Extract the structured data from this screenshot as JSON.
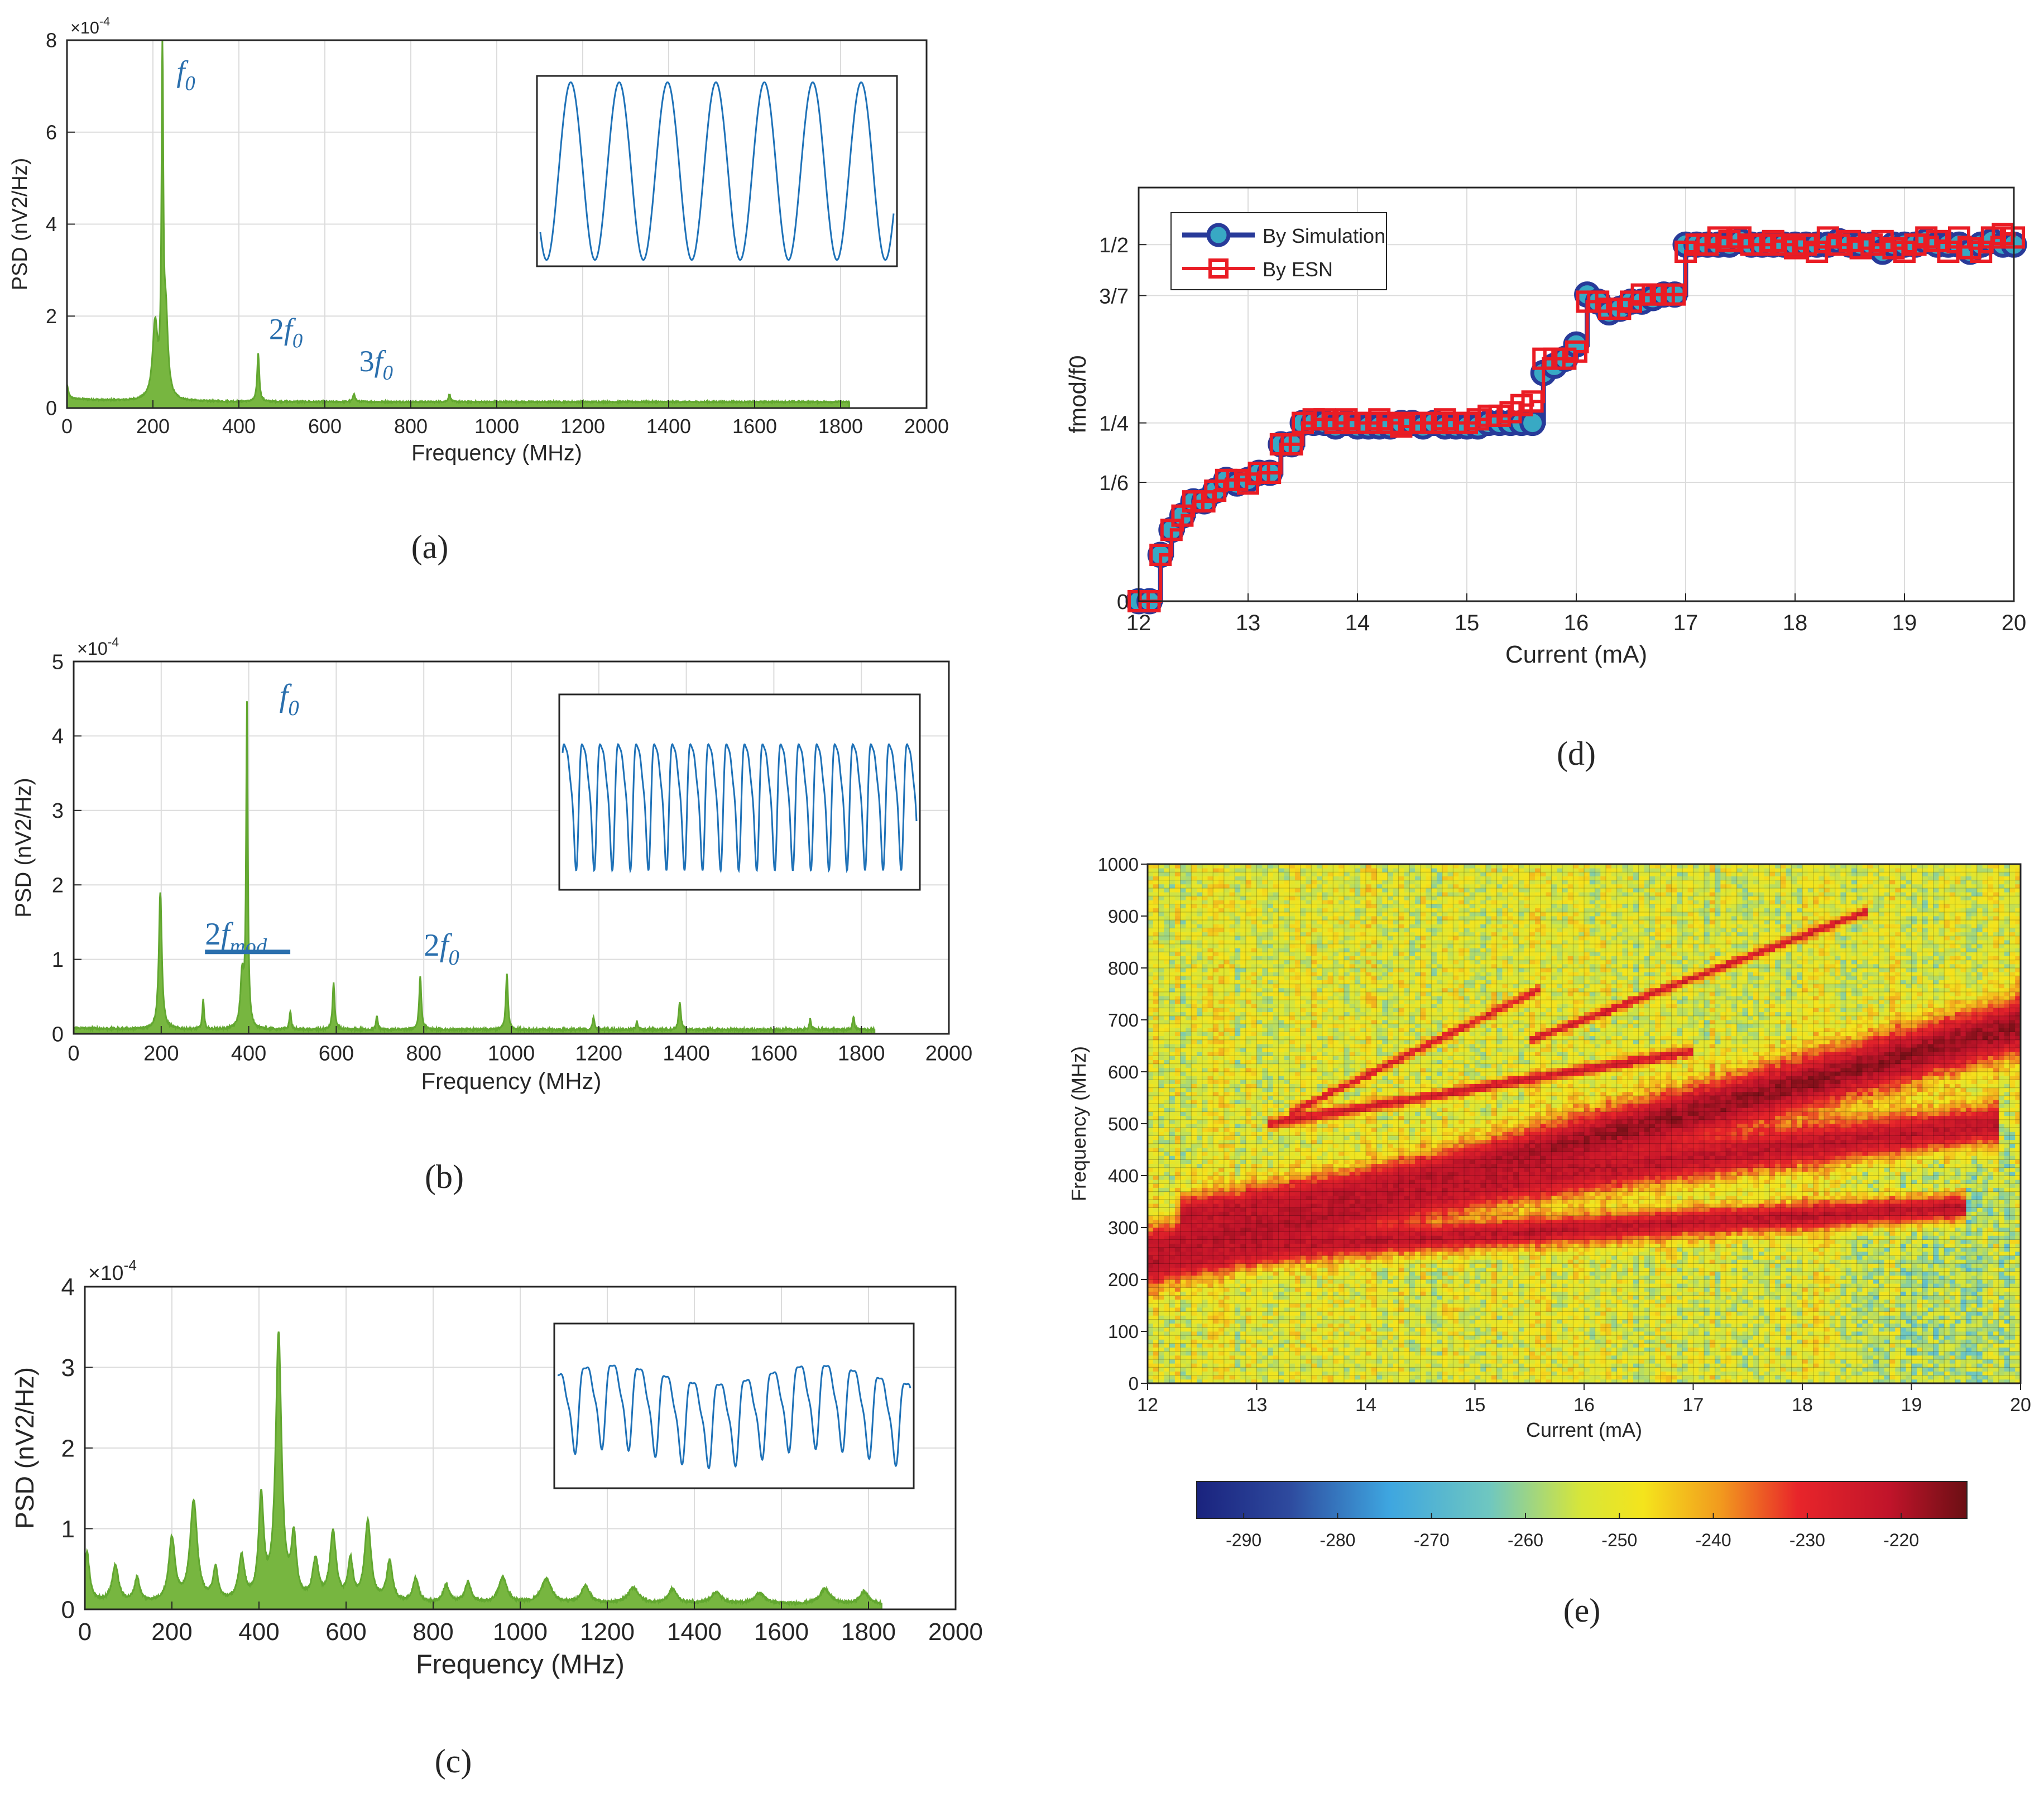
{
  "colors": {
    "psd_fill": "#77b640",
    "psd_edge": "#62a730",
    "inset_line": "#1f72b8",
    "annotation": "#2a6fad",
    "simulation_line": "#283a99",
    "simulation_marker_fill": "#38a9c4",
    "esn_line": "#ea1c24",
    "grid": "#dcdcdc",
    "axis": "#262626"
  },
  "chart_data": [
    {
      "panel": "a",
      "type": "area",
      "caption": "(a)",
      "xlabel": "Frequency (MHz)",
      "ylabel": "PSD (nV2/Hz)",
      "exponent_label": "×10",
      "exponent": "-4",
      "xlim": [
        0,
        2000
      ],
      "ylim": [
        0,
        8
      ],
      "xticks": [
        "0",
        "200",
        "400",
        "600",
        "800",
        "1000",
        "1200",
        "1400",
        "1600",
        "1800",
        "2000"
      ],
      "yticks": [
        "0",
        "2",
        "4",
        "6",
        "8"
      ],
      "x_end": 1820,
      "baseline": 0.12,
      "peaks": [
        [
          0,
          0.3,
          6
        ],
        [
          205,
          1.6,
          12
        ],
        [
          222,
          7.45,
          4
        ],
        [
          230,
          1.7,
          10
        ],
        [
          445,
          1.05,
          5
        ],
        [
          668,
          0.18,
          5
        ],
        [
          890,
          0.16,
          5
        ]
      ],
      "annotations": [
        {
          "base": "f",
          "sub": "0",
          "x": 255,
          "y": 7.1
        },
        {
          "base": "2f",
          "sub": "0",
          "x": 470,
          "y": 1.5
        },
        {
          "base": "3f",
          "sub": "0",
          "x": 680,
          "y": 0.8
        }
      ],
      "inset": {
        "cycles": 7.3,
        "phase": 3.9,
        "amplitude": 1.0,
        "harmonic2": 0.0,
        "harmonic3": 0.0
      }
    },
    {
      "panel": "b",
      "type": "area",
      "caption": "(b)",
      "xlabel": "Frequency (MHz)",
      "ylabel": "PSD (nV2/Hz)",
      "exponent_label": "×10",
      "exponent": "-4",
      "xlim": [
        0,
        2000
      ],
      "ylim": [
        0,
        5
      ],
      "xticks": [
        "0",
        "200",
        "400",
        "600",
        "800",
        "1000",
        "1200",
        "1400",
        "1600",
        "1800",
        "2000"
      ],
      "yticks": [
        "0",
        "1",
        "2",
        "3",
        "4",
        "5"
      ],
      "x_end": 1830,
      "baseline": 0.04,
      "peaks": [
        [
          198,
          1.85,
          7
        ],
        [
          296,
          0.4,
          4
        ],
        [
          385,
          0.7,
          8
        ],
        [
          396,
          4.3,
          4
        ],
        [
          495,
          0.25,
          4
        ],
        [
          594,
          0.62,
          5
        ],
        [
          693,
          0.18,
          4
        ],
        [
          792,
          0.72,
          5
        ],
        [
          990,
          0.75,
          5
        ],
        [
          1188,
          0.18,
          4
        ],
        [
          1287,
          0.12,
          4
        ],
        [
          1385,
          0.38,
          5
        ],
        [
          1683,
          0.15,
          4
        ],
        [
          1782,
          0.18,
          4
        ]
      ],
      "annotations": [
        {
          "base": "f",
          "sub": "0",
          "x": 470,
          "y": 4.4
        },
        {
          "base": "2f",
          "sub": "mod",
          "x": 300,
          "y": 1.2
        },
        {
          "base": "2f",
          "sub": "0",
          "x": 800,
          "y": 1.05
        }
      ],
      "annotation_bar": {
        "x1": 300,
        "x2": 495,
        "y": 1.1
      },
      "inset": {
        "cycles": 19.6,
        "phase": 0.3,
        "amplitude": 0.9,
        "harmonic2": 0.35,
        "harmonic3": 0.12
      }
    },
    {
      "panel": "c",
      "type": "area",
      "caption": "(c)",
      "xlabel": "Frequency (MHz)",
      "ylabel": "PSD (nV2/Hz)",
      "exponent_label": "×10",
      "exponent": "-4",
      "xlim": [
        0,
        2000
      ],
      "ylim": [
        0,
        4
      ],
      "xticks": [
        "0",
        "200",
        "400",
        "600",
        "800",
        "1000",
        "1200",
        "1400",
        "1600",
        "1800",
        "2000"
      ],
      "yticks": [
        "0",
        "1",
        "2",
        "3",
        "4"
      ],
      "x_end": 1830,
      "baseline": 0.05,
      "peaks": [
        [
          5,
          0.6,
          12
        ],
        [
          70,
          0.45,
          15
        ],
        [
          120,
          0.3,
          12
        ],
        [
          200,
          0.78,
          15
        ],
        [
          250,
          1.25,
          17
        ],
        [
          300,
          0.4,
          12
        ],
        [
          360,
          0.55,
          14
        ],
        [
          405,
          1.25,
          12
        ],
        [
          445,
          3.3,
          14
        ],
        [
          480,
          0.75,
          12
        ],
        [
          530,
          0.5,
          14
        ],
        [
          570,
          0.85,
          15
        ],
        [
          610,
          0.5,
          12
        ],
        [
          650,
          1.0,
          15
        ],
        [
          700,
          0.5,
          14
        ],
        [
          760,
          0.3,
          14
        ],
        [
          830,
          0.22,
          15
        ],
        [
          880,
          0.25,
          15
        ],
        [
          960,
          0.32,
          20
        ],
        [
          1060,
          0.3,
          25
        ],
        [
          1150,
          0.22,
          20
        ],
        [
          1260,
          0.2,
          25
        ],
        [
          1350,
          0.18,
          20
        ],
        [
          1450,
          0.14,
          25
        ],
        [
          1550,
          0.13,
          25
        ],
        [
          1700,
          0.18,
          25
        ],
        [
          1790,
          0.15,
          20
        ]
      ],
      "inset": {
        "cycles": 13.2,
        "phase": 0.9,
        "amplitude": 0.85,
        "harmonic2": 0.3,
        "harmonic3": 0.15
      }
    },
    {
      "panel": "d",
      "type": "line",
      "caption": "(d)",
      "xlabel": "Current (mA)",
      "ylabel": "fmod/f0",
      "xlim": [
        12,
        20
      ],
      "ylim": [
        0,
        0.58
      ],
      "xticks": [
        "12",
        "13",
        "14",
        "15",
        "16",
        "17",
        "18",
        "19",
        "20"
      ],
      "ytick_values": [
        0,
        0.1667,
        0.25,
        0.4286,
        0.5
      ],
      "ytick_labels": [
        "0",
        "1/6",
        "1/4",
        "3/7",
        "1/2"
      ],
      "legend_position": "top-left",
      "series": [
        {
          "name": "By Simulation",
          "marker": "circle",
          "x": [
            12.0,
            12.1,
            12.2,
            12.3,
            12.4,
            12.5,
            12.6,
            12.7,
            12.8,
            12.9,
            13.0,
            13.1,
            13.2,
            13.3,
            13.4,
            13.5,
            13.6,
            13.7,
            13.8,
            13.9,
            14.0,
            14.1,
            14.2,
            14.3,
            14.4,
            14.5,
            14.6,
            14.7,
            14.8,
            14.9,
            15.0,
            15.1,
            15.2,
            15.3,
            15.4,
            15.5,
            15.6,
            15.7,
            15.8,
            15.9,
            16.0,
            16.1,
            16.2,
            16.3,
            16.4,
            16.5,
            16.6,
            16.7,
            16.8,
            16.9,
            17.0,
            17.1,
            17.2,
            17.3,
            17.4,
            17.5,
            17.6,
            17.7,
            17.8,
            17.9,
            18.0,
            18.1,
            18.2,
            18.3,
            18.4,
            18.5,
            18.6,
            18.7,
            18.8,
            18.9,
            19.0,
            19.1,
            19.2,
            19.3,
            19.4,
            19.5,
            19.6,
            19.7,
            19.8,
            19.9,
            20.0
          ],
          "y": [
            0.0,
            0.0,
            0.065,
            0.1,
            0.12,
            0.14,
            0.14,
            0.155,
            0.17,
            0.165,
            0.17,
            0.18,
            0.18,
            0.22,
            0.22,
            0.25,
            0.25,
            0.25,
            0.245,
            0.25,
            0.245,
            0.245,
            0.245,
            0.245,
            0.25,
            0.25,
            0.245,
            0.25,
            0.245,
            0.245,
            0.245,
            0.245,
            0.25,
            0.25,
            0.25,
            0.25,
            0.25,
            0.32,
            0.33,
            0.34,
            0.36,
            0.43,
            0.42,
            0.405,
            0.41,
            0.42,
            0.42,
            0.425,
            0.43,
            0.43,
            0.5,
            0.5,
            0.5,
            0.5,
            0.5,
            0.505,
            0.5,
            0.5,
            0.5,
            0.5,
            0.5,
            0.5,
            0.5,
            0.5,
            0.505,
            0.5,
            0.5,
            0.5,
            0.49,
            0.5,
            0.5,
            0.5,
            0.505,
            0.5,
            0.5,
            0.5,
            0.49,
            0.5,
            0.505,
            0.5,
            0.5
          ]
        },
        {
          "name": "By ESN",
          "marker": "square",
          "x": [
            12.0,
            12.1,
            12.2,
            12.3,
            12.4,
            12.5,
            12.6,
            12.7,
            12.8,
            12.9,
            13.0,
            13.1,
            13.2,
            13.3,
            13.4,
            13.5,
            13.6,
            13.7,
            13.8,
            13.9,
            14.0,
            14.1,
            14.2,
            14.3,
            14.4,
            14.5,
            14.6,
            14.7,
            14.8,
            14.9,
            15.0,
            15.1,
            15.2,
            15.3,
            15.4,
            15.5,
            15.6,
            15.7,
            15.8,
            15.9,
            16.0,
            16.1,
            16.2,
            16.3,
            16.4,
            16.5,
            16.6,
            16.7,
            16.8,
            16.9,
            17.0,
            17.1,
            17.2,
            17.3,
            17.4,
            17.5,
            17.6,
            17.7,
            17.8,
            17.9,
            18.0,
            18.1,
            18.2,
            18.3,
            18.4,
            18.5,
            18.6,
            18.7,
            18.8,
            18.9,
            19.0,
            19.1,
            19.2,
            19.3,
            19.4,
            19.5,
            19.6,
            19.7,
            19.8,
            19.9,
            20.0
          ],
          "y": [
            0.0,
            0.0,
            0.065,
            0.1,
            0.12,
            0.14,
            0.14,
            0.155,
            0.17,
            0.17,
            0.165,
            0.18,
            0.18,
            0.22,
            0.22,
            0.25,
            0.255,
            0.255,
            0.25,
            0.255,
            0.25,
            0.25,
            0.255,
            0.25,
            0.245,
            0.25,
            0.25,
            0.25,
            0.255,
            0.25,
            0.25,
            0.255,
            0.26,
            0.26,
            0.265,
            0.275,
            0.28,
            0.34,
            0.34,
            0.34,
            0.35,
            0.42,
            0.42,
            0.41,
            0.41,
            0.42,
            0.43,
            0.43,
            0.43,
            0.43,
            0.49,
            0.5,
            0.5,
            0.51,
            0.505,
            0.51,
            0.5,
            0.5,
            0.505,
            0.5,
            0.495,
            0.5,
            0.49,
            0.51,
            0.5,
            0.505,
            0.495,
            0.5,
            0.505,
            0.495,
            0.49,
            0.5,
            0.51,
            0.505,
            0.49,
            0.51,
            0.495,
            0.49,
            0.51,
            0.515,
            0.51
          ]
        }
      ]
    },
    {
      "panel": "e",
      "type": "heatmap",
      "caption": "(e)",
      "xlabel": "Current (mA)",
      "ylabel": "Frequency (MHz)",
      "xlim": [
        12,
        20
      ],
      "ylim": [
        0,
        1000
      ],
      "xticks": [
        "12",
        "13",
        "14",
        "15",
        "16",
        "17",
        "18",
        "19",
        "20"
      ],
      "yticks": [
        "0",
        "100",
        "200",
        "300",
        "400",
        "500",
        "600",
        "700",
        "800",
        "900",
        "1000"
      ],
      "colorbar_ticks": [
        "-290",
        "-280",
        "-270",
        "-260",
        "-250",
        "-240",
        "-230",
        "-220"
      ],
      "colorbar_range": [
        -295,
        -213
      ],
      "ridges": [
        {
          "from": [
            12.0,
            240
          ],
          "to": [
            20.0,
            690
          ],
          "level": -217,
          "width": 60
        },
        {
          "from": [
            12.3,
            320
          ],
          "to": [
            19.8,
            500
          ],
          "level": -222,
          "width": 45
        },
        {
          "from": [
            12.0,
            250
          ],
          "to": [
            19.5,
            340
          ],
          "level": -222,
          "width": 30
        },
        {
          "from": [
            13.1,
            500
          ],
          "to": [
            17.0,
            640
          ],
          "level": -226,
          "width": 12
        },
        {
          "from": [
            15.5,
            660
          ],
          "to": [
            18.6,
            910
          ],
          "level": -226,
          "width": 10
        },
        {
          "from": [
            13.3,
            520
          ],
          "to": [
            15.6,
            760
          ],
          "level": -228,
          "width": 10
        }
      ],
      "background_level": -252
    }
  ]
}
